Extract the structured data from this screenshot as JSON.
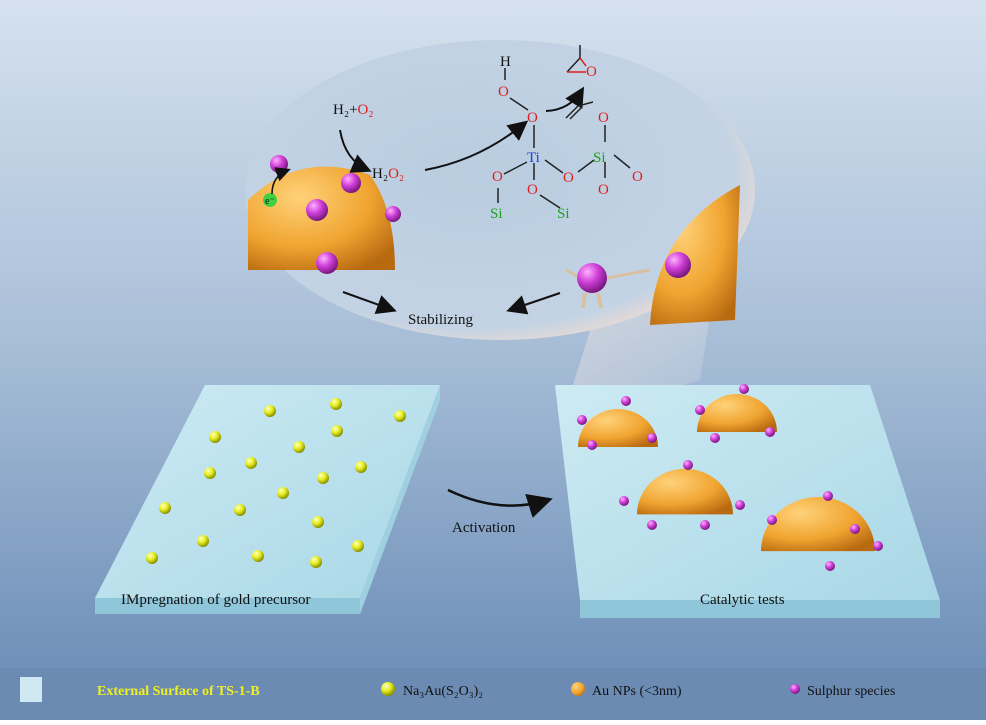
{
  "colors": {
    "background_top": "#d3dfec",
    "background_bottom": "#7393bb",
    "legend_bar": "#6b8bb3",
    "slab": "#bfe3ee",
    "gold": "#f0a830",
    "sulphur": "#c040d0",
    "precursor": "#e6f020",
    "oxygen": "#e02020",
    "titanium": "#2040e0",
    "silicon": "#20a020",
    "legend_highlight_text": "#f0f020"
  },
  "labels": {
    "stabilizing": "Stabilizing",
    "activation": "Activation",
    "impregnation": "IMpregnation of gold precursor",
    "catalytic": "Catalytic tests",
    "electron": "e⁻"
  },
  "chemistry": {
    "h2": "H₂",
    "plus": "+",
    "o2": "O₂",
    "h2o2_h": "H₂",
    "h2o2_o": "O₂",
    "hydroxyl_h": "H",
    "oxygen": "O",
    "titanium": "Ti",
    "silicon": "Si"
  },
  "legend": [
    {
      "label": "External Surface of TS-1-B",
      "icon": "slab-swatch"
    },
    {
      "label": "Na₃Au(S₂O₃)₂",
      "icon": "yellow-sphere"
    },
    {
      "label": "Au NPs (<3nm)",
      "icon": "gold-sphere"
    },
    {
      "label": "Sulphur species",
      "icon": "purple-sphere"
    }
  ]
}
